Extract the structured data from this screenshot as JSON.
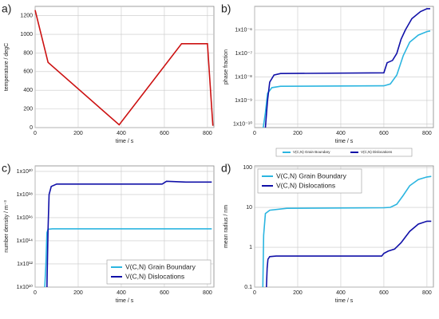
{
  "chart_data": [
    {
      "type": "line",
      "label": "a)",
      "xlabel": "time / s",
      "ylabel": "temperature / degC",
      "xlim": [
        0,
        830
      ],
      "xticks": [
        0,
        200,
        400,
        600,
        800
      ],
      "ylim": [
        0,
        1300
      ],
      "yticks": [
        0,
        200,
        400,
        600,
        800,
        1000,
        1200
      ],
      "log_y": false,
      "grid": true,
      "series": [
        {
          "color": "#cc1111",
          "x": [
            0,
            60,
            390,
            680,
            800,
            825
          ],
          "values": [
            1260,
            700,
            30,
            900,
            900,
            20
          ]
        }
      ]
    },
    {
      "type": "line",
      "label": "b)",
      "xlabel": "time / s",
      "ylabel": "phase fraction",
      "xlim": [
        0,
        830
      ],
      "xticks": [
        0,
        200,
        400,
        600,
        800
      ],
      "ylim": [
        7e-11,
        1e-05
      ],
      "yticks": [
        {
          "value": 1e-10,
          "label": "1x10⁻¹⁰"
        },
        {
          "value": 1e-09,
          "label": "1x10⁻⁹"
        },
        {
          "value": 1e-08,
          "label": "1x10⁻⁸"
        },
        {
          "value": 1e-07,
          "label": "1x10⁻⁷"
        },
        {
          "value": 1e-06,
          "label": "1x10⁻⁶"
        }
      ],
      "log_y": true,
      "grid": true,
      "legend": "bottom",
      "series": [
        {
          "name": "V(C,N) Grain Boundary",
          "color": "#2bb5e0",
          "x": [
            40,
            50,
            60,
            80,
            120,
            600,
            630,
            660,
            690,
            720,
            760,
            800,
            815
          ],
          "values": [
            7e-11,
            3e-10,
            2e-09,
            3.5e-09,
            4e-09,
            4.2e-09,
            5e-09,
            1.2e-08,
            8e-08,
            3e-07,
            6e-07,
            8.5e-07,
            9e-07
          ]
        },
        {
          "name": "V(C,N) Dislocations",
          "color": "#1010a8",
          "x": [
            50,
            60,
            70,
            90,
            120,
            600,
            615,
            640,
            660,
            680,
            700,
            730,
            770,
            800,
            815
          ],
          "values": [
            7e-11,
            1e-09,
            6e-09,
            1.2e-08,
            1.4e-08,
            1.5e-08,
            4e-08,
            5e-08,
            1e-07,
            4e-07,
            1e-06,
            3e-06,
            6e-06,
            8e-06,
            8e-06
          ]
        }
      ]
    },
    {
      "type": "line",
      "label": "c)",
      "xlabel": "time / s",
      "ylabel": "number density / m⁻³",
      "xlim": [
        0,
        830
      ],
      "xticks": [
        0,
        200,
        400,
        600,
        800
      ],
      "ylim": [
        10000000000.0,
        3e+20
      ],
      "yticks": [
        {
          "value": 10000000000.0,
          "label": "1x10¹⁰"
        },
        {
          "value": 1000000000000.0,
          "label": "1x10¹²"
        },
        {
          "value": 100000000000000.0,
          "label": "1x10¹⁴"
        },
        {
          "value": 1e+16,
          "label": "1x10¹⁶"
        },
        {
          "value": 1e+18,
          "label": "1x10¹⁸"
        },
        {
          "value": 1e+20,
          "label": "1x10²⁰"
        }
      ],
      "log_y": true,
      "grid": true,
      "legend": "lower right",
      "series": [
        {
          "name": "V(C,N) Grain Boundary",
          "color": "#2bb5e0",
          "x": [
            45,
            50,
            55,
            60,
            80,
            820
          ],
          "values": [
            10000000000.0,
            1000000000000.0,
            500000000000000.0,
            1000000000000000.0,
            1100000000000000.0,
            1100000000000000.0
          ]
        },
        {
          "name": "V(C,N) Dislocations",
          "color": "#1010a8",
          "x": [
            55,
            60,
            65,
            75,
            100,
            590,
            610,
            700,
            820
          ],
          "values": [
            10000000000.0,
            1000000000000000.0,
            1e+18,
            5e+18,
            8e+18,
            8e+18,
            1.4e+19,
            1.2e+19,
            1.2e+19
          ]
        }
      ]
    },
    {
      "type": "line",
      "label": "d)",
      "xlabel": "time / s",
      "ylabel": "mean radius / nm",
      "xlim": [
        0,
        830
      ],
      "xticks": [
        0,
        200,
        400,
        600,
        800
      ],
      "ylim": [
        0.1,
        110
      ],
      "yticks": [
        0.1,
        1,
        10,
        100
      ],
      "log_y": true,
      "grid": true,
      "legend": "upper left",
      "series": [
        {
          "name": "V(C,N) Grain Boundary",
          "color": "#2bb5e0",
          "x": [
            38,
            42,
            50,
            70,
            150,
            600,
            630,
            660,
            690,
            720,
            760,
            800,
            820
          ],
          "values": [
            0.1,
            2,
            7,
            8.5,
            9.5,
            9.8,
            10,
            12,
            20,
            35,
            50,
            58,
            60
          ]
        },
        {
          "name": "V(C,N) Dislocations",
          "color": "#1010a8",
          "x": [
            55,
            58,
            62,
            70,
            100,
            590,
            600,
            620,
            650,
            680,
            720,
            760,
            800,
            820
          ],
          "values": [
            0.1,
            0.3,
            0.5,
            0.58,
            0.6,
            0.6,
            0.7,
            0.8,
            0.9,
            1.3,
            2.5,
            3.8,
            4.5,
            4.5
          ]
        }
      ]
    }
  ]
}
